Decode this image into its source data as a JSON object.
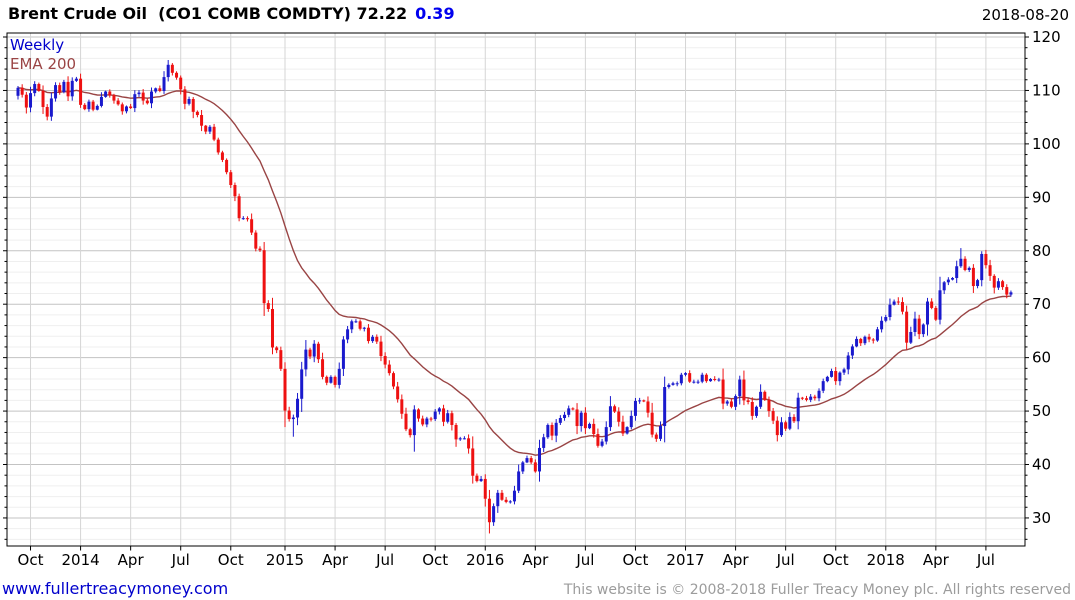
{
  "header": {
    "title": "Brent Crude Oil  (CO1 COMB COMDTY) 72.22",
    "change": "0.39",
    "date": "2018-08-20"
  },
  "legend": {
    "timeframe": "Weekly",
    "overlay": "EMA 200"
  },
  "footer": {
    "site": "www.fullertreacymoney.com",
    "copyright": "This website is © 2008-2018 Fuller Treacy Money plc. All rights reserved"
  },
  "colors": {
    "up": "#1a1acd",
    "down": "#ee1111",
    "ema": "#994444",
    "grid_major": "#c3c3c3",
    "grid_minor": "#efefef",
    "grid_vertical": "#d5d5d5",
    "axis": "#000000",
    "label": "#000000"
  },
  "chart_data": {
    "type": "candlestick",
    "title": "Brent Crude Oil (CO1 COMB COMDTY)",
    "timeframe": "Weekly",
    "last_price": 72.22,
    "change": 0.39,
    "date": "2018-08-20",
    "ylim": [
      24.75,
      120.75
    ],
    "y_major_ticks": [
      30,
      40,
      50,
      60,
      70,
      80,
      90,
      100,
      110,
      120
    ],
    "y_minor_step": 2,
    "grid": true,
    "legend_position": "top-left",
    "ema": {
      "label": "EMA 200",
      "span_weeks": 29
    },
    "x_ticks": [
      {
        "label": "Oct",
        "week": 3
      },
      {
        "label": "2014",
        "week": 15
      },
      {
        "label": "Apr",
        "week": 27
      },
      {
        "label": "Jul",
        "week": 39
      },
      {
        "label": "Oct",
        "week": 51
      },
      {
        "label": "2015",
        "week": 64
      },
      {
        "label": "Apr",
        "week": 76
      },
      {
        "label": "Jul",
        "week": 88
      },
      {
        "label": "Oct",
        "week": 100
      },
      {
        "label": "2016",
        "week": 112
      },
      {
        "label": "Apr",
        "week": 124
      },
      {
        "label": "Jul",
        "week": 136
      },
      {
        "label": "Oct",
        "week": 148
      },
      {
        "label": "2017",
        "week": 160
      },
      {
        "label": "Apr",
        "week": 172
      },
      {
        "label": "Jul",
        "week": 184
      },
      {
        "label": "Oct",
        "week": 196
      },
      {
        "label": "2018",
        "week": 208
      },
      {
        "label": "Apr",
        "week": 220
      },
      {
        "label": "Jul",
        "week": 232
      }
    ],
    "first_open": 109.0,
    "closes": [
      110.5,
      109.2,
      106.8,
      109.5,
      111.2,
      109.9,
      106.9,
      105.1,
      108.5,
      111.0,
      109.7,
      111.6,
      108.9,
      111.8,
      112.2,
      107.3,
      106.5,
      107.9,
      106.4,
      107.1,
      108.8,
      109.8,
      109.1,
      108.1,
      107.4,
      106.1,
      107.0,
      106.7,
      109.3,
      109.6,
      108.1,
      107.6,
      109.8,
      110.4,
      109.9,
      112.5,
      114.8,
      113.3,
      112.4,
      110.2,
      107.5,
      108.4,
      106.0,
      105.4,
      103.4,
      102.3,
      103.2,
      100.8,
      98.4,
      97.0,
      94.7,
      92.3,
      90.2,
      86.1,
      86.1,
      85.9,
      83.4,
      80.4,
      80.1,
      70.2,
      69.1,
      61.9,
      61.4,
      57.9,
      50.1,
      48.5,
      48.8,
      52.3,
      57.8,
      61.5,
      60.2,
      62.6,
      59.7,
      56.4,
      55.3,
      56.4,
      54.9,
      57.9,
      63.4,
      65.3,
      66.8,
      66.8,
      65.4,
      65.6,
      63.1,
      63.9,
      63.0,
      60.3,
      58.7,
      57.1,
      54.6,
      52.2,
      49.5,
      46.6,
      45.5,
      50.3,
      48.6,
      47.5,
      48.6,
      48.5,
      49.9,
      50.5,
      48.0,
      49.6,
      47.4,
      44.7,
      44.9,
      44.9,
      43.0,
      37.9,
      36.9,
      37.3,
      33.6,
      29.2,
      32.2,
      34.7,
      33.4,
      33.0,
      33.1,
      35.1,
      38.7,
      40.4,
      41.2,
      40.4,
      38.7,
      43.1,
      45.1,
      47.4,
      45.4,
      47.8,
      48.7,
      49.3,
      50.5,
      50.3,
      47.2,
      49.7,
      46.8,
      47.6,
      45.7,
      43.5,
      44.3,
      47.0,
      50.9,
      49.9,
      48.0,
      45.8,
      47.0,
      49.1,
      51.9,
      52.0,
      51.8,
      49.7,
      45.6,
      44.8,
      47.2,
      54.5,
      54.9,
      55.2,
      55.2,
      56.8,
      57.1,
      55.5,
      55.5,
      55.5,
      56.8,
      55.6,
      56.0,
      55.9,
      55.9,
      51.4,
      51.8,
      50.8,
      52.8,
      55.9,
      52.0,
      51.7,
      49.1,
      50.8,
      53.6,
      52.1,
      50.0,
      48.2,
      45.5,
      47.9,
      46.7,
      48.9,
      48.1,
      52.5,
      52.4,
      52.1,
      52.7,
      52.4,
      53.8,
      55.6,
      56.4,
      57.5,
      55.6,
      57.2,
      57.8,
      60.4,
      62.1,
      63.5,
      62.7,
      63.9,
      63.4,
      63.2,
      65.3,
      66.9,
      67.6,
      69.9,
      70.5,
      70.4,
      68.6,
      62.8,
      64.8,
      67.3,
      64.4,
      66.2,
      70.5,
      69.3,
      67.1,
      72.6,
      74.1,
      74.6,
      74.9,
      77.1,
      78.5,
      76.4,
      76.8,
      73.4,
      74.5,
      79.4,
      77.3,
      75.3,
      73.1,
      74.3,
      73.2,
      71.8,
      72.22
    ],
    "wick_overrides": {
      "36": {
        "high": 115.7
      },
      "59": {
        "low": 67.8
      },
      "66": {
        "low": 45.2
      },
      "95": {
        "low": 42.4
      },
      "113": {
        "low": 27.1
      },
      "211": {
        "high": 71.3
      },
      "226": {
        "high": 80.5
      },
      "231": {
        "high": 79.9
      }
    }
  }
}
